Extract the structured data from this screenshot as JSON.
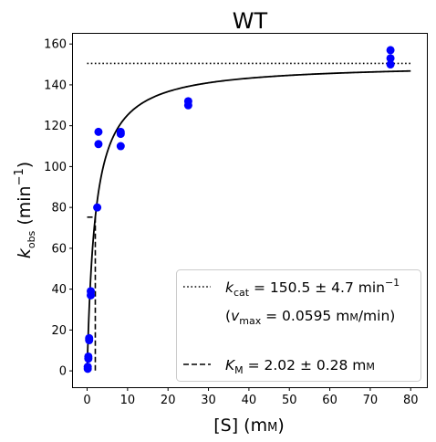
{
  "chart_data": {
    "type": "scatter",
    "title": "WT",
    "xlabel": {
      "main": "[S] (m",
      "unit_small": "M",
      "close": ")"
    },
    "ylabel": {
      "k": "k",
      "sub": "obs",
      "unit": " (min",
      "sup": "−1",
      "close": ")"
    },
    "xlim": [
      -3.5,
      84
    ],
    "ylim": [
      -8,
      165
    ],
    "xticks": [
      0,
      10,
      20,
      30,
      40,
      50,
      60,
      70,
      80
    ],
    "yticks": [
      0,
      20,
      40,
      60,
      80,
      100,
      120,
      140,
      160
    ],
    "grid": false,
    "legend_position": "lower-right",
    "points": {
      "color": "#0000ff",
      "x": [
        0.15,
        0.15,
        0.3,
        0.3,
        0.5,
        0.5,
        0.9,
        0.9,
        2.5,
        2.8,
        2.8,
        8.3,
        8.3,
        8.3,
        25,
        25,
        75,
        75,
        75
      ],
      "y": [
        1,
        2,
        6,
        7,
        15,
        16,
        37,
        39,
        80,
        111,
        117,
        110,
        116,
        117,
        130,
        132,
        150,
        153,
        157
      ]
    },
    "fit": {
      "kcat": 150.5,
      "KM": 2.02,
      "x_max": 80,
      "color": "#000000"
    },
    "kcat_line": {
      "y": 150.5,
      "x_range": [
        0,
        80
      ],
      "style": "dotted"
    },
    "km_marker": {
      "x": 2.02,
      "y": 75.25,
      "style": "dashed"
    },
    "legend": [
      {
        "style": "dotted",
        "k": "k",
        "sub": "cat",
        "text": " = 150.5 ± 4.7 min",
        "sup": "−1"
      },
      {
        "style": "none",
        "open": "(",
        "v": "v",
        "sub": "max",
        "text": " = 0.0595 m",
        "unit_small": "M",
        "close": "/min)"
      },
      {
        "style": "dashed",
        "k": "K",
        "sub": "M",
        "text": " = 2.02 ± 0.28 m",
        "unit_small": "M"
      }
    ]
  }
}
